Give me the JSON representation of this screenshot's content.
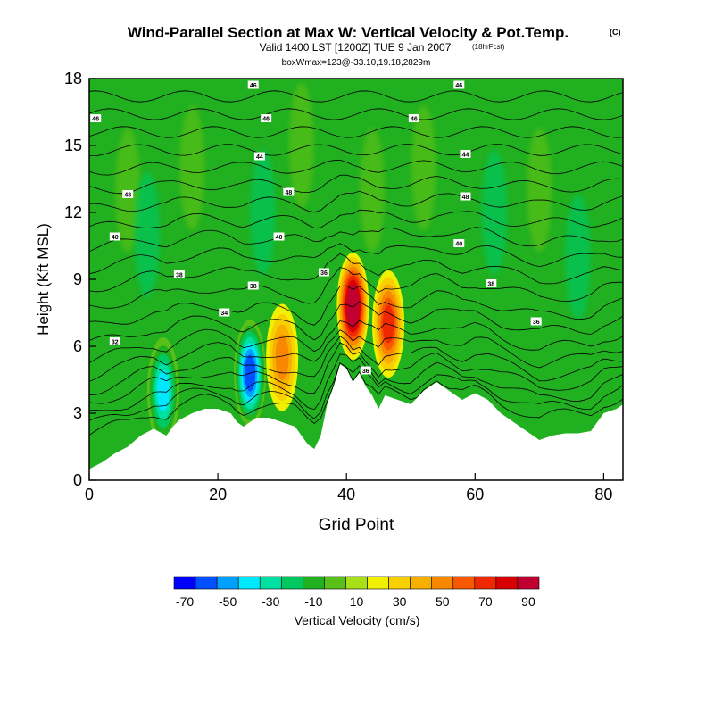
{
  "chart_data": {
    "type": "heatmap",
    "title": "Wind-Parallel Section at Max W: Vertical Velocity & Pot.Temp.",
    "title_mark": "(C)",
    "subtitle": "Valid 1400 LST [1200Z] TUE 9 Jan 2007",
    "subtitle_note": "(18hrFcst)",
    "subtitle2": "boxWmax=123@-33.10,19.18,2829m",
    "xlabel": "Grid Point",
    "ylabel": "Height (Kft MSL)",
    "xlim": [
      0,
      83
    ],
    "ylim": [
      0,
      18
    ],
    "xticks": [
      0,
      20,
      40,
      60,
      80
    ],
    "yticks": [
      0,
      3,
      6,
      9,
      12,
      15,
      18
    ],
    "colorbar": {
      "label": "Vertical Velocity (cm/s)",
      "tick_labels": [
        "-70",
        "-50",
        "-30",
        "-10",
        "10",
        "30",
        "50",
        "70",
        "90"
      ],
      "colors": [
        "#0000ff",
        "#0050ff",
        "#00a0ff",
        "#00e8ff",
        "#00e0a0",
        "#00c860",
        "#20b020",
        "#58c018",
        "#a8e018",
        "#f0f000",
        "#f8d000",
        "#f8b000",
        "#f88800",
        "#f85800",
        "#f02800",
        "#d80000",
        "#c00030"
      ]
    },
    "terrain": [
      [
        0,
        0.5
      ],
      [
        2,
        0.8
      ],
      [
        4,
        1.2
      ],
      [
        6,
        1.5
      ],
      [
        8,
        2.0
      ],
      [
        10,
        2.3
      ],
      [
        12,
        2.0
      ],
      [
        13,
        2.4
      ],
      [
        14,
        2.7
      ],
      [
        16,
        3.0
      ],
      [
        18,
        3.2
      ],
      [
        20,
        3.2
      ],
      [
        22,
        3.0
      ],
      [
        23,
        2.6
      ],
      [
        24,
        2.4
      ],
      [
        25,
        2.6
      ],
      [
        26,
        2.8
      ],
      [
        28,
        2.8
      ],
      [
        30,
        2.6
      ],
      [
        32,
        2.4
      ],
      [
        33,
        2.0
      ],
      [
        34,
        1.6
      ],
      [
        35,
        1.4
      ],
      [
        36,
        2.0
      ],
      [
        37,
        3.4
      ],
      [
        38,
        4.2
      ],
      [
        39,
        5.2
      ],
      [
        40,
        5.0
      ],
      [
        41,
        4.4
      ],
      [
        42,
        4.8
      ],
      [
        43,
        4.2
      ],
      [
        44,
        3.8
      ],
      [
        45,
        3.2
      ],
      [
        46,
        3.8
      ],
      [
        48,
        3.6
      ],
      [
        50,
        3.4
      ],
      [
        52,
        4.0
      ],
      [
        54,
        4.4
      ],
      [
        56,
        4.0
      ],
      [
        58,
        3.6
      ],
      [
        60,
        3.9
      ],
      [
        62,
        3.6
      ],
      [
        64,
        3.0
      ],
      [
        66,
        2.6
      ],
      [
        68,
        2.2
      ],
      [
        70,
        1.8
      ],
      [
        72,
        2.0
      ],
      [
        74,
        2.1
      ],
      [
        76,
        2.1
      ],
      [
        78,
        2.2
      ],
      [
        80,
        3.0
      ],
      [
        82,
        3.2
      ],
      [
        83,
        3.4
      ]
    ],
    "vertical_velocity_features": [
      {
        "x": 11.5,
        "y": 4.0,
        "value": -45
      },
      {
        "x": 25,
        "y": 4.8,
        "value": -70
      },
      {
        "x": 30,
        "y": 5.5,
        "value": 40
      },
      {
        "x": 41,
        "y": 7.8,
        "value": 90
      },
      {
        "x": 46.5,
        "y": 7.0,
        "value": 55
      }
    ],
    "contour_labels": [
      {
        "x": 25.5,
        "y": 17.7,
        "text": "46"
      },
      {
        "x": 57.5,
        "y": 17.7,
        "text": "46"
      },
      {
        "x": 1,
        "y": 16.2,
        "text": "46"
      },
      {
        "x": 27.5,
        "y": 16.2,
        "text": "46"
      },
      {
        "x": 50.5,
        "y": 16.2,
        "text": "46"
      },
      {
        "x": 26.5,
        "y": 14.5,
        "text": "44"
      },
      {
        "x": 58.5,
        "y": 14.6,
        "text": "44"
      },
      {
        "x": 6,
        "y": 12.8,
        "text": "48"
      },
      {
        "x": 31,
        "y": 12.9,
        "text": "48"
      },
      {
        "x": 58.5,
        "y": 12.7,
        "text": "48"
      },
      {
        "x": 4,
        "y": 10.9,
        "text": "40"
      },
      {
        "x": 29.5,
        "y": 10.9,
        "text": "40"
      },
      {
        "x": 57.5,
        "y": 10.6,
        "text": "40"
      },
      {
        "x": 14,
        "y": 9.2,
        "text": "38"
      },
      {
        "x": 25.5,
        "y": 8.7,
        "text": "38"
      },
      {
        "x": 36.5,
        "y": 9.3,
        "text": "36"
      },
      {
        "x": 62.5,
        "y": 8.8,
        "text": "38"
      },
      {
        "x": 21,
        "y": 7.5,
        "text": "34"
      },
      {
        "x": 69.5,
        "y": 7.1,
        "text": "36"
      },
      {
        "x": 4,
        "y": 6.2,
        "text": "32"
      },
      {
        "x": 43,
        "y": 4.9,
        "text": "36"
      }
    ]
  }
}
